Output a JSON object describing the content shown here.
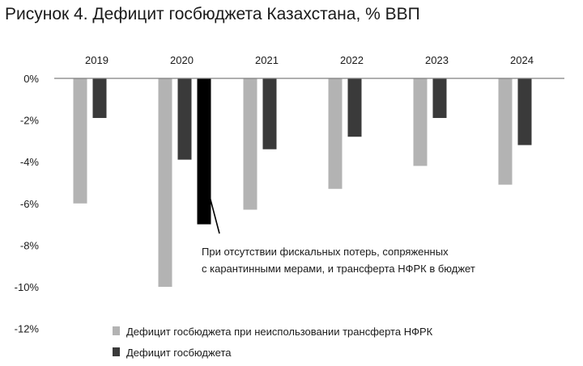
{
  "title": "Рисунок 4. Дефицит госбюджета Казахстана, % ВВП",
  "chart_data": {
    "type": "bar",
    "categories": [
      "2019",
      "2020",
      "2021",
      "2022",
      "2023",
      "2024"
    ],
    "series": [
      {
        "name": "Дефицит госбюджета при неиспользовании трансферта НФРК",
        "color": "#b3b3b3",
        "values": [
          -6.0,
          -10.0,
          -6.3,
          -5.3,
          -4.2,
          -5.1
        ]
      },
      {
        "name": "Дефицит госбюджета",
        "color": "#3a3a3a",
        "values": [
          -1.9,
          -3.9,
          -3.4,
          -2.8,
          -1.9,
          -3.2
        ]
      }
    ],
    "extra_bar": {
      "category": "2020",
      "value": -7.0,
      "color": "#000000"
    },
    "annotation": [
      "При отсутствии фискальных потерь, сопряженных",
      "с карантинными мерами, и трансферта НФРК в бюджет"
    ],
    "yticks": [
      0,
      -2,
      -4,
      -6,
      -8,
      -10,
      -12
    ],
    "ytick_labels": [
      "0%",
      "-2%",
      "-4%",
      "-6%",
      "-8%",
      "-10%",
      "-12%"
    ],
    "ylim": [
      -12,
      0
    ],
    "category_axis_position": "top",
    "legend_position": "bottom"
  }
}
